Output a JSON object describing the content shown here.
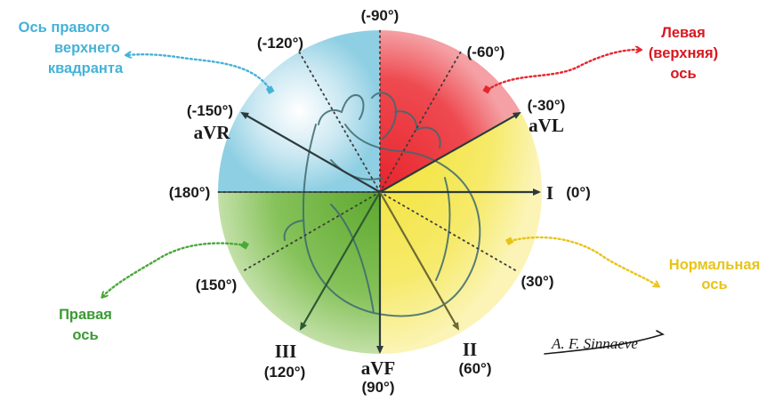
{
  "colors": {
    "right_upper": "#8fcfe3",
    "left_upper": "#e8242c",
    "normal": "#f4e64b",
    "right": "#6fb33a",
    "right_upper_text": "#45b2d8",
    "left_upper_text": "#d9161f",
    "normal_text": "#e8c418",
    "right_text": "#3a9a32"
  },
  "quadrants": {
    "right_upper": [
      "Ось правого",
      "верхнего",
      "квадранта"
    ],
    "left_upper": [
      "Левая",
      "(верхняя)",
      "ось"
    ],
    "normal": [
      "Нормальная",
      "ось"
    ],
    "right": [
      "Правая",
      "ось"
    ]
  },
  "degrees": {
    "m90": "(-90°)",
    "m120": "(-120°)",
    "m60": "(-60°)",
    "m30": "(-30°)",
    "m150": "(-150°)",
    "d180": "(180°)",
    "d0": "(0°)",
    "d150": "(150°)",
    "d30": "(30°)",
    "d120": "(120°)",
    "d90": "(90°)",
    "d60": "(60°)"
  },
  "leads": {
    "avl": "aVL",
    "avr": "aVR",
    "i": "I",
    "iii": "III",
    "avf": "aVF",
    "ii": "II"
  },
  "signature": "A. F. Sinnaeve"
}
